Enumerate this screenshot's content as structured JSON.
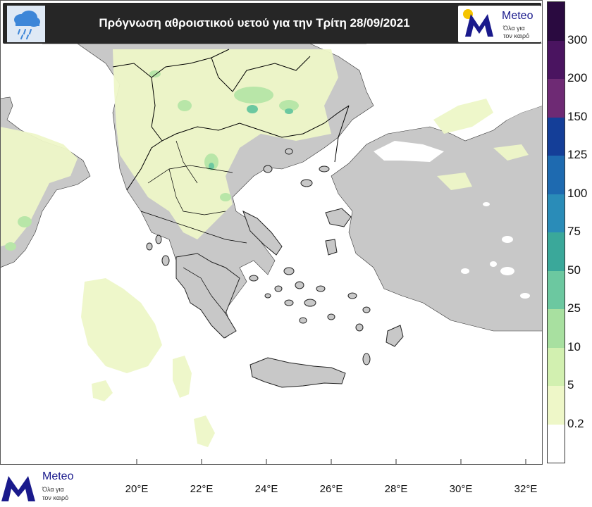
{
  "header": {
    "title": "Πρόγνωση αθροιστικού υετού για την Τρίτη 28/09/2021",
    "background": "#262626",
    "icons": [
      "rain-cloud-icon",
      "sun-icon"
    ]
  },
  "logo": {
    "name": "Meteo",
    "tagline_line1": "Όλα για",
    "tagline_line2": "τον καιρό",
    "brand_color": "#1a1a8c",
    "accent_color": "#f5c400"
  },
  "legend": {
    "unit": "",
    "thresholds": [
      "0.2",
      "5",
      "10",
      "25",
      "50",
      "75",
      "100",
      "125",
      "150",
      "200",
      "300"
    ],
    "colors": [
      "#ffffff",
      "#eef7c8",
      "#d2f0b0",
      "#a8e0a0",
      "#6cc8a0",
      "#3aa89a",
      "#2a8cb8",
      "#1e6ab0",
      "#143e98",
      "#6e2a74",
      "#4a1460",
      "#2a0a40"
    ]
  },
  "map": {
    "x_axis": {
      "ticks": [
        "20°E",
        "22°E",
        "24°E",
        "26°E",
        "28°E",
        "30°E",
        "32°E"
      ],
      "values": [
        20,
        22,
        24,
        26,
        28,
        30,
        32
      ]
    },
    "land_color": "#c8c8c8",
    "sea_color": "#ffffff",
    "border_color": "#000000"
  }
}
